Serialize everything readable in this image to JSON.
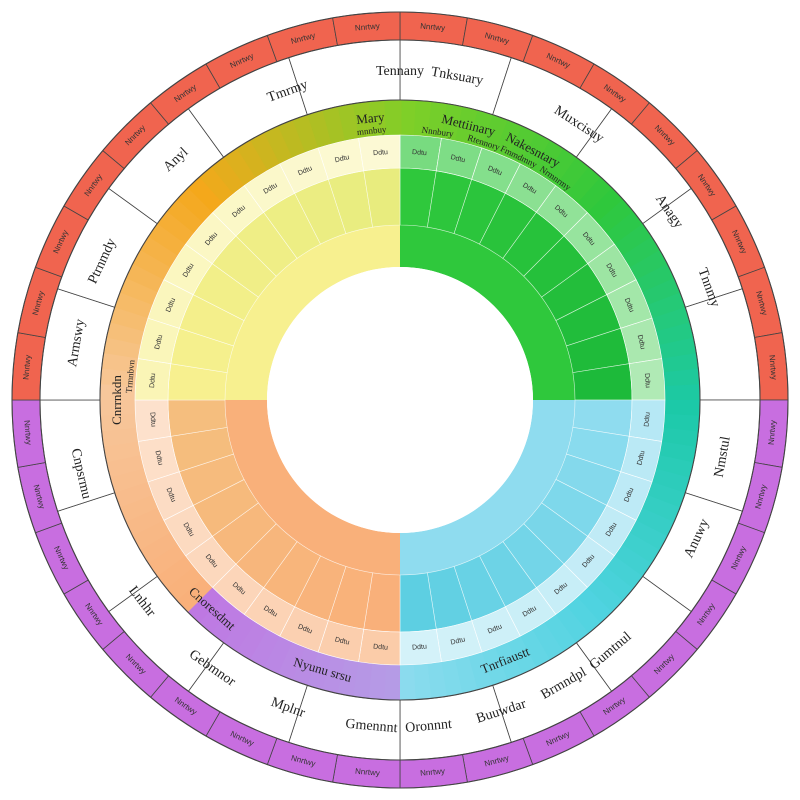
{
  "palette": {
    "outer_left": "#f0644f",
    "outer_right": "#c86ee0",
    "yellow": "#f7f08f",
    "green": "#2fc83c",
    "blue": "#8fdcef",
    "orange": "#f9b07a",
    "amber": "#f4a81b",
    "lime": "#7fcf28",
    "teal": "#1cc9a8",
    "cyan": "#4fd3e0",
    "violet": "#b59be6",
    "purple": "#bf76e2",
    "line": "#444444"
  },
  "outer_segment_count": 36,
  "outer_text": "Nnrtwy",
  "large_labels": [
    {
      "text": "Tennany",
      "angle": 0
    },
    {
      "text": "Tnksuary",
      "angle": 10
    },
    {
      "text": "Muxcisuy",
      "angle": 33
    },
    {
      "text": "Anagy",
      "angle": 55
    },
    {
      "text": "Tnnmy",
      "angle": 70
    },
    {
      "text": "Nmstul",
      "angle": 100
    },
    {
      "text": "Anuwy",
      "angle": 115
    },
    {
      "text": "Gumtnul",
      "angle": 140
    },
    {
      "text": "Brmndpl",
      "angle": 150
    },
    {
      "text": "Buuwdar",
      "angle": 162
    },
    {
      "text": "Oronnnt",
      "angle": 175
    },
    {
      "text": "Gmennnt",
      "angle": 185
    },
    {
      "text": "Mplnr",
      "angle": 200
    },
    {
      "text": "Gebmnor",
      "angle": 215
    },
    {
      "text": "Lnhhr",
      "angle": 232
    },
    {
      "text": "Cnpsrmu",
      "angle": 257
    },
    {
      "text": "Armswy",
      "angle": 280
    },
    {
      "text": "Ptrnmdy",
      "angle": 295
    },
    {
      "text": "Anyl",
      "angle": 317
    },
    {
      "text": "Tmrmy",
      "angle": 340
    }
  ],
  "mid_labels": [
    {
      "text": "Mary",
      "angle": 354
    },
    {
      "text": "Mettiinary",
      "angle": 14
    },
    {
      "text": "Nakesntary",
      "angle": 28
    },
    {
      "text": "Tnrfiaustt",
      "angle": 158
    },
    {
      "text": "Nyunu srsu",
      "angle": 196
    },
    {
      "text": "Cnoresdmt",
      "angle": 222
    },
    {
      "text": "Cnrrnkdn",
      "angle": 270
    }
  ],
  "small_labels": [
    {
      "text": "mnnbuy",
      "angle": 354
    },
    {
      "text": "Nnnbury",
      "angle": 8
    },
    {
      "text": "Rtennory",
      "angle": 18
    },
    {
      "text": "Fmmdmny",
      "angle": 26
    },
    {
      "text": "Nrmnrmy",
      "angle": 35
    },
    {
      "text": "Trmnbvn",
      "angle": 275
    }
  ],
  "ring_text": "Ddtu"
}
